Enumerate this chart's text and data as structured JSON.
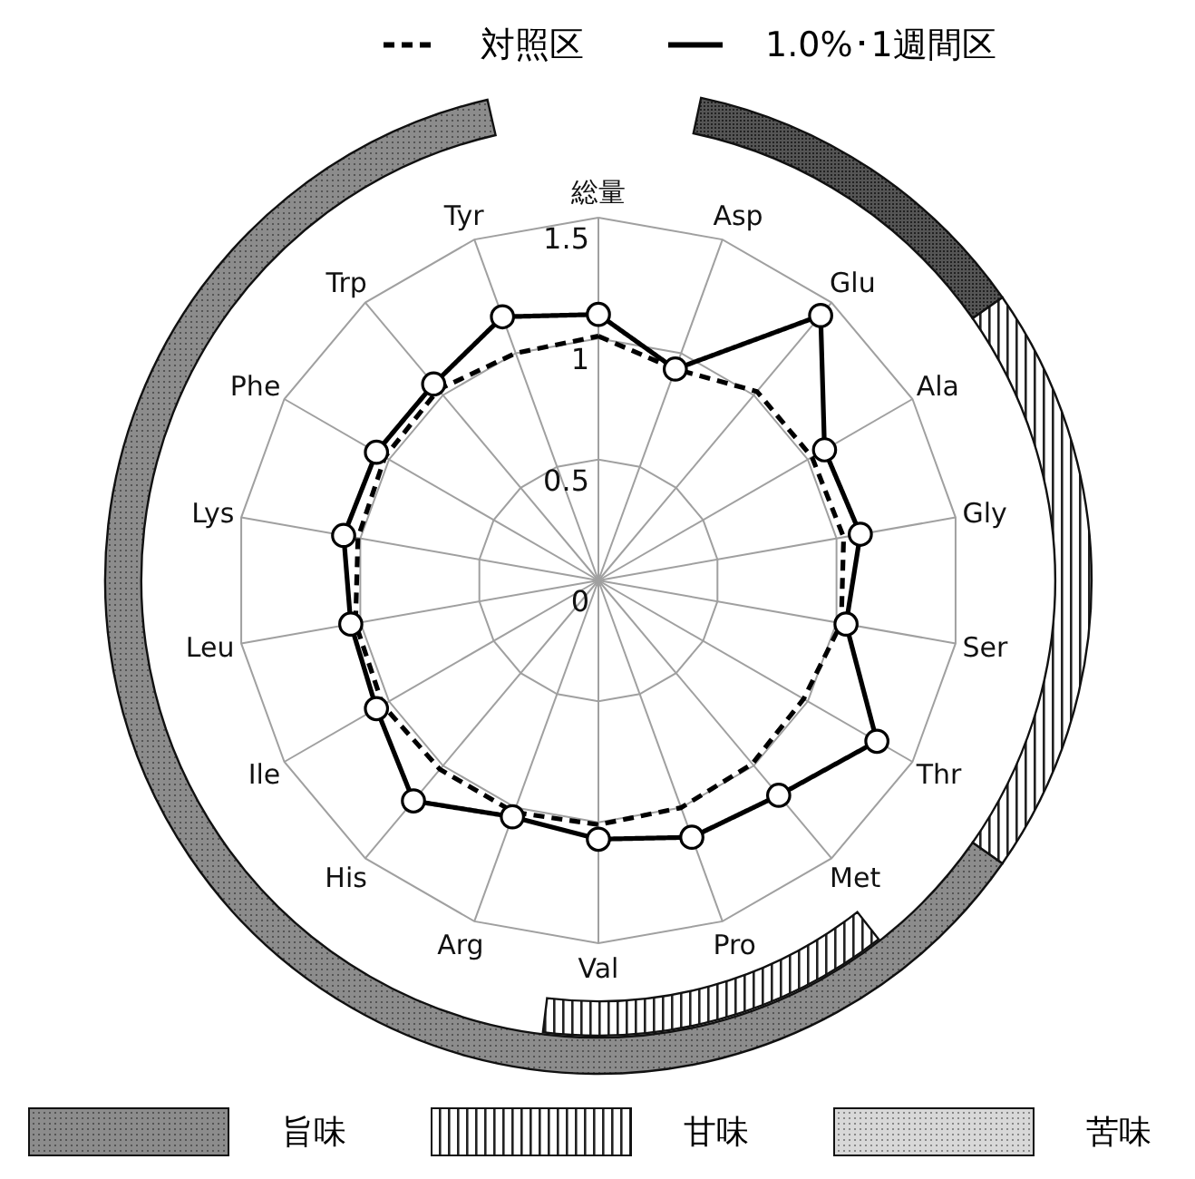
{
  "chart_data": {
    "type": "radar",
    "categories": [
      "総量",
      "Asp",
      "Glu",
      "Ala",
      "Gly",
      "Ser",
      "Thr",
      "Met",
      "Pro",
      "Val",
      "Arg",
      "His",
      "Ile",
      "Leu",
      "Lys",
      "Phe",
      "Trp",
      "Tyr"
    ],
    "series": [
      {
        "name": "対照区",
        "color": "#000000",
        "line_style": "dashed",
        "marker": "none",
        "values": [
          1.01,
          0.93,
          1.02,
          1.02,
          1.03,
          1.02,
          0.98,
          0.99,
          1.0,
          1.01,
          1.02,
          1.02,
          1.03,
          1.02,
          1.01,
          1.02,
          1.03,
          1.0
        ]
      },
      {
        "name": "1.0%･1週間区",
        "color": "#000000",
        "line_style": "solid",
        "marker": "circle",
        "values": [
          1.1,
          0.93,
          1.43,
          1.08,
          1.1,
          1.04,
          1.33,
          1.16,
          1.13,
          1.07,
          1.04,
          1.19,
          1.06,
          1.04,
          1.07,
          1.06,
          1.06,
          1.16
        ]
      }
    ],
    "ylim": [
      0,
      1.5
    ],
    "yticks": [
      0,
      0.5,
      1,
      1.5
    ],
    "grid": true,
    "legend": "top",
    "annotations": [
      "旨味",
      "甘味",
      "苦味"
    ]
  }
}
